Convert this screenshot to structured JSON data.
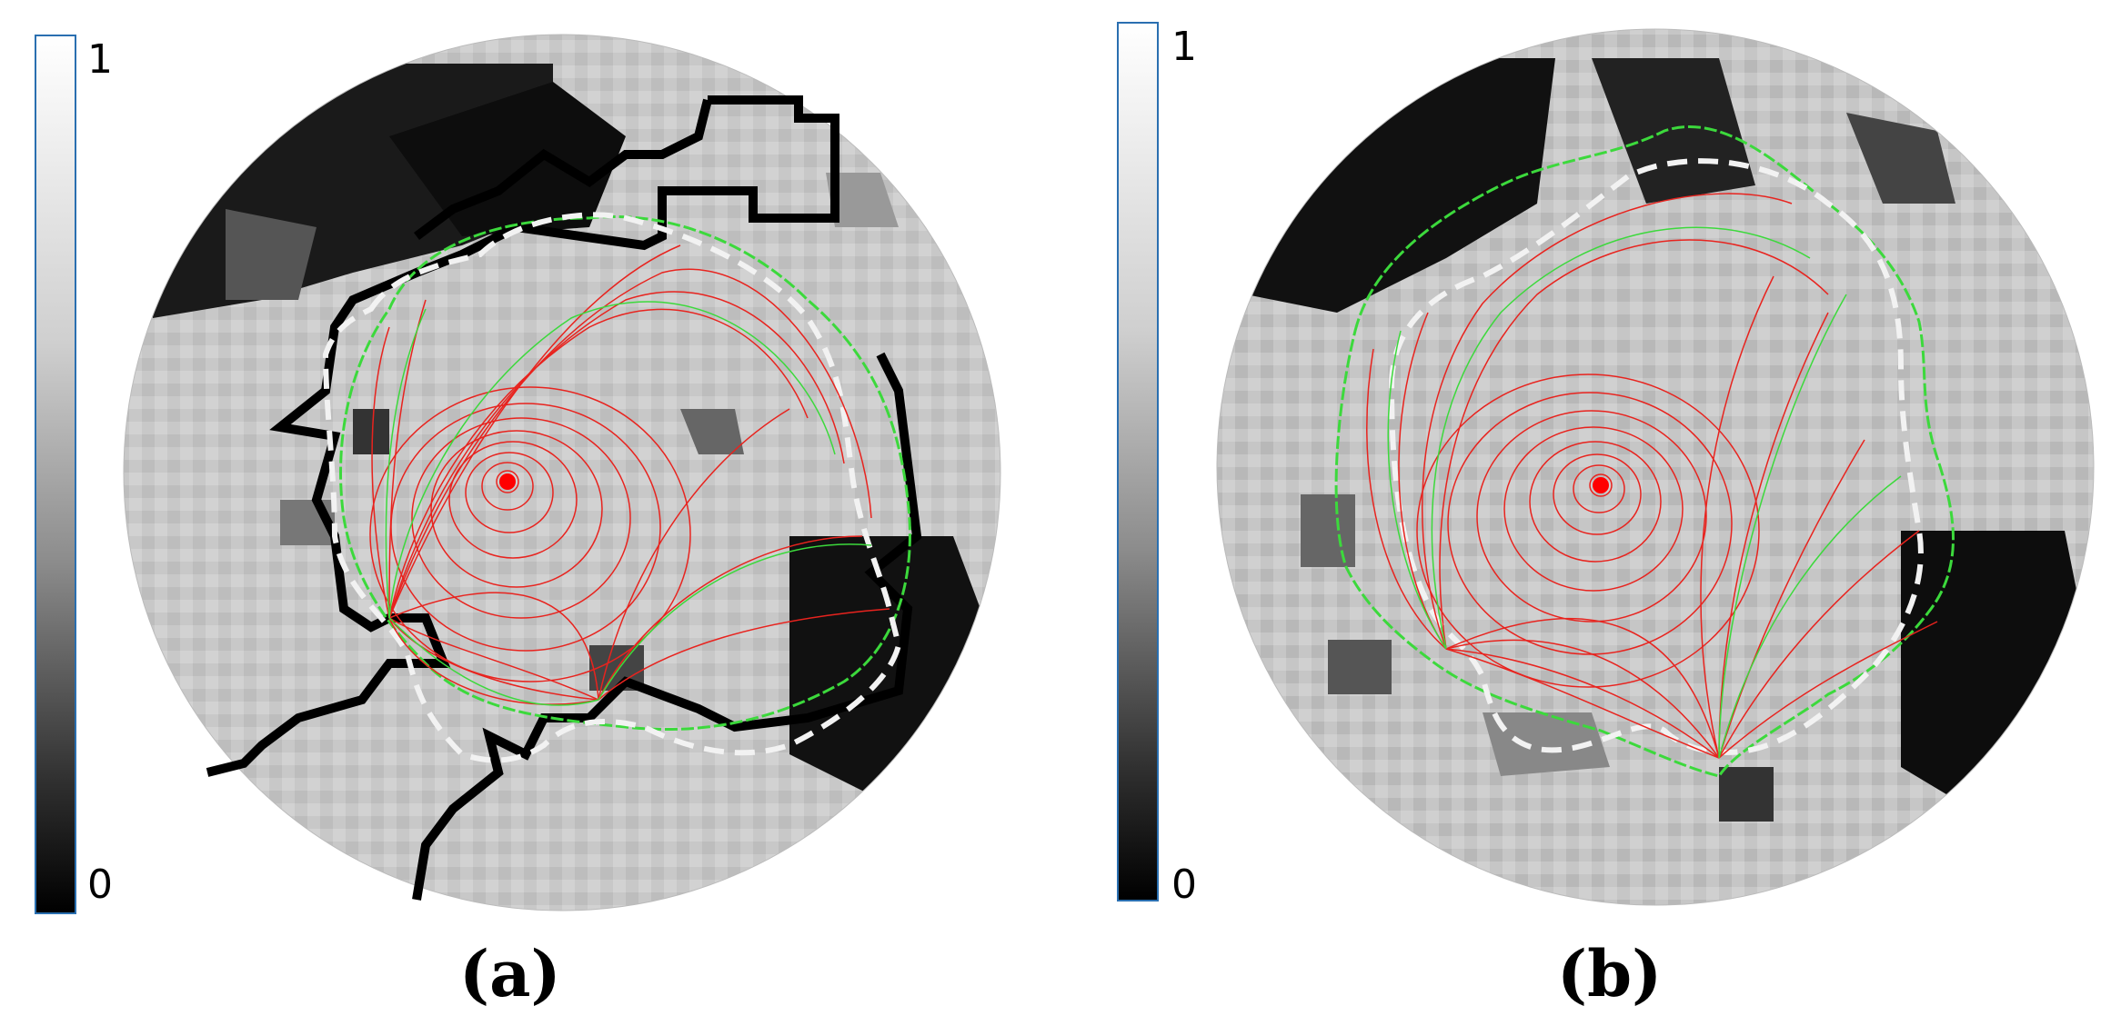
{
  "panels": [
    {
      "id": "a",
      "caption": "(a)",
      "colorbar": {
        "max_label": "1",
        "min_label": "0"
      }
    },
    {
      "id": "b",
      "caption": "(b)",
      "colorbar": {
        "max_label": "1",
        "min_label": "0"
      }
    }
  ],
  "colors": {
    "streamline_red": "#e8231e",
    "streamline_green": "#3cd93c",
    "dashed_white": "#f2f2f2",
    "contour_black": "#000000",
    "colorbar_border": "#2a6fb0",
    "marker_red": "#ff0000"
  }
}
